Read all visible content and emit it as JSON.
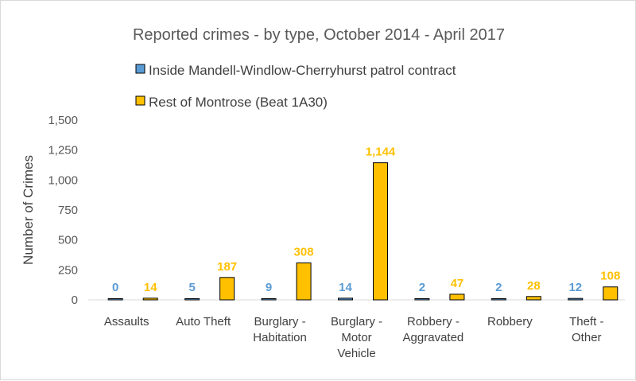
{
  "chart_data": {
    "type": "bar",
    "title": "Reported crimes - by type, October 2014 - April 2017",
    "ylabel": "Number of Crimes",
    "xlabel": "",
    "ylim": [
      0,
      1500
    ],
    "yticks": [
      "0",
      "250",
      "500",
      "750",
      "1,000",
      "1,250",
      "1,500"
    ],
    "ytick_values": [
      0,
      250,
      500,
      750,
      1000,
      1250,
      1500
    ],
    "grid": false,
    "legend_position": "top",
    "categories": [
      [
        "Assaults"
      ],
      [
        "Auto Theft"
      ],
      [
        "Burglary -",
        "Habitation"
      ],
      [
        "Burglary -",
        "Motor",
        "Vehicle"
      ],
      [
        "Robbery -",
        "Aggravated"
      ],
      [
        "Robbery"
      ],
      [
        "Theft -",
        "Other"
      ]
    ],
    "series": [
      {
        "name": "Inside Mandell-Windlow-Cherryhurst patrol contract",
        "color": "#5b9bd5",
        "label_color": "#5b9bd5",
        "values": [
          0,
          5,
          9,
          14,
          2,
          2,
          12
        ],
        "labels": [
          "0",
          "5",
          "9",
          "14",
          "2",
          "2",
          "12"
        ]
      },
      {
        "name": "Rest of Montrose (Beat 1A30)",
        "color": "#ffc000",
        "label_color": "#ffc000",
        "values": [
          14,
          187,
          308,
          1144,
          47,
          28,
          108
        ],
        "labels": [
          "14",
          "187",
          "308",
          "1,144",
          "47",
          "28",
          "108"
        ]
      }
    ]
  }
}
